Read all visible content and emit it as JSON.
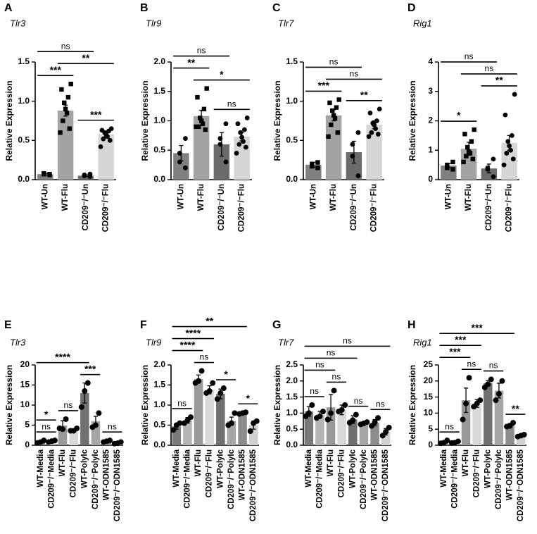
{
  "chart_data": [
    {
      "type": "bar",
      "panel": "A",
      "title": "Tlr3",
      "ylabel": "Relative Expression",
      "categories": [
        "WT-Un",
        "WT-Flu",
        "CD209⁻/⁻Un",
        "CD209⁻/⁻Flu"
      ],
      "values": [
        0.07,
        0.88,
        0.05,
        0.58
      ],
      "errors": [
        0.01,
        0.07,
        0.01,
        0.03
      ],
      "points": [
        [
          0.06,
          0.07,
          0.08,
          0.07
        ],
        [
          1.22,
          1.15,
          1.05,
          0.98,
          0.9,
          0.85,
          0.75,
          0.65,
          0.6
        ],
        [
          0.04,
          0.06,
          0.05,
          0.07
        ],
        [
          0.65,
          0.63,
          0.62,
          0.6,
          0.58,
          0.55,
          0.52,
          0.5,
          0.42
        ]
      ],
      "markers": [
        "square",
        "square",
        "circle",
        "circle"
      ],
      "colors": [
        "#808080",
        "#a3a3a3",
        "#6b6b6b",
        "#d6d6d6"
      ],
      "ylim": [
        0,
        1.5
      ],
      "yticks": [
        {
          "value": 0,
          "label": "0.0"
        },
        0.5,
        {
          "value": 1,
          "label": "1.0"
        },
        1.5
      ],
      "annotations": [
        {
          "text": "***",
          "from": 0,
          "to": 1
        },
        {
          "text": "***",
          "from": 2,
          "to": 3
        },
        {
          "text": "**",
          "from": 1,
          "to": 3
        },
        {
          "text": "ns",
          "from": 0,
          "to": 2
        }
      ]
    },
    {
      "type": "bar",
      "panel": "B",
      "title": "Tlr9",
      "ylabel": "Relative Expression",
      "categories": [
        "WT-Un",
        "WT-Flu",
        "CD209⁻/⁻Un",
        "CD209⁻/⁻Flu"
      ],
      "values": [
        0.45,
        1.08,
        0.6,
        0.73
      ],
      "errors": [
        0.13,
        0.1,
        0.2,
        0.07
      ],
      "points": [
        [
          0.7,
          0.45,
          0.3,
          0.2
        ],
        [
          1.55,
          1.4,
          1.2,
          1.05,
          1.0,
          0.95,
          0.9,
          0.85,
          0.9
        ],
        [
          0.95,
          0.7,
          0.6,
          0.3
        ],
        [
          1.05,
          0.95,
          0.85,
          0.8,
          0.72,
          0.65,
          0.6,
          0.55,
          0.45
        ]
      ],
      "markers": [
        "circle",
        "square",
        "circle",
        "circle"
      ],
      "colors": [
        "#808080",
        "#a3a3a3",
        "#6b6b6b",
        "#d6d6d6"
      ],
      "ylim": [
        0,
        2
      ],
      "yticks": [
        {
          "value": 0,
          "label": "0.0"
        },
        0.5,
        {
          "value": 1,
          "label": "1.0"
        },
        1.5,
        {
          "value": 2,
          "label": "2.0"
        }
      ],
      "annotations": [
        {
          "text": "ns",
          "from": 2,
          "to": 3
        },
        {
          "text": "*",
          "from": 1,
          "to": 3
        },
        {
          "text": "**",
          "from": 0,
          "to": 1
        },
        {
          "text": "ns",
          "from": 0,
          "to": 2
        }
      ]
    },
    {
      "type": "bar",
      "panel": "C",
      "title": "Tlr7",
      "ylabel": "Relative Expression",
      "categories": [
        "WT-Un",
        "WT-Flu",
        "CD209⁻/⁻Un",
        "CD209⁻/⁻Flu"
      ],
      "values": [
        0.19,
        0.82,
        0.35,
        0.7
      ],
      "errors": [
        0.03,
        0.07,
        0.14,
        0.05
      ],
      "points": [
        [
          0.22,
          0.2,
          0.17,
          0.15
        ],
        [
          1.02,
          0.98,
          0.92,
          0.88,
          0.82,
          0.78,
          0.7,
          0.6,
          0.55
        ],
        [
          0.6,
          0.45,
          0.3,
          0.05
        ],
        [
          0.9,
          0.85,
          0.75,
          0.72,
          0.7,
          0.65,
          0.6,
          0.58,
          0.55
        ]
      ],
      "markers": [
        "square",
        "square",
        "circle",
        "circle"
      ],
      "colors": [
        "#808080",
        "#a3a3a3",
        "#6b6b6b",
        "#d6d6d6"
      ],
      "ylim": [
        0,
        1.5
      ],
      "yticks": [
        {
          "value": 0,
          "label": "0.0"
        },
        0.5,
        {
          "value": 1,
          "label": "1.0"
        },
        1.5
      ],
      "annotations": [
        {
          "text": "**",
          "from": 2,
          "to": 3
        },
        {
          "text": "***",
          "from": 0,
          "to": 1
        },
        {
          "text": "ns",
          "from": 1,
          "to": 3
        },
        {
          "text": "ns",
          "from": 0,
          "to": 2
        }
      ]
    },
    {
      "type": "bar",
      "panel": "D",
      "title": "Rig1",
      "ylabel": "Relative Expression",
      "categories": [
        "WT-Un",
        "WT-Flu",
        "CD209⁻/⁻Un",
        "CD209⁻/⁻Flu"
      ],
      "values": [
        0.48,
        1.05,
        0.38,
        1.25
      ],
      "errors": [
        0.07,
        0.22,
        0.15,
        0.25
      ],
      "points": [
        [
          0.6,
          0.5,
          0.4,
          0.35
        ],
        [
          1.7,
          1.55,
          1.3,
          1.1,
          0.95,
          0.9,
          0.8,
          0.7,
          0.6
        ],
        [
          0.7,
          0.4,
          0.35,
          0.1
        ],
        [
          2.9,
          2.2,
          1.5,
          1.3,
          1.15,
          1.0,
          0.9,
          0.7,
          0.5
        ]
      ],
      "markers": [
        "square",
        "square",
        "circle",
        "circle"
      ],
      "colors": [
        "#808080",
        "#a3a3a3",
        "#6b6b6b",
        "#d6d6d6"
      ],
      "ylim": [
        0,
        4
      ],
      "yticks": [
        0,
        1,
        2,
        3,
        4
      ],
      "annotations": [
        {
          "text": "*",
          "from": 0,
          "to": 1
        },
        {
          "text": "**",
          "from": 2,
          "to": 3
        },
        {
          "text": "ns",
          "from": 1,
          "to": 3
        },
        {
          "text": "ns",
          "from": 0,
          "to": 2
        }
      ]
    },
    {
      "type": "bar",
      "panel": "E",
      "title": "Tlr3",
      "ylabel": "Relative Expression",
      "categories": [
        "WT-Media",
        "CD209⁻/⁻Media",
        "WT-Flu",
        "CD209⁻/⁻Flu",
        "WT-PolyIc",
        "CD209⁻/⁻PolyIc",
        "WT-ODN1585",
        "CD209⁻/⁻ODN1585"
      ],
      "values": [
        0.9,
        1.0,
        4.9,
        3.8,
        13.0,
        6.0,
        1.0,
        0.6
      ],
      "errors": [
        0.2,
        0.2,
        1.2,
        0.3,
        2.5,
        1.2,
        0.2,
        0.2
      ],
      "points": [
        [
          1.2,
          0.8,
          0.6
        ],
        [
          1.2,
          1.0,
          0.8
        ],
        [
          6.5,
          4.0,
          4.2
        ],
        [
          4.2,
          3.6,
          3.6
        ],
        [
          15.5,
          13.5,
          9.5
        ],
        [
          8,
          5,
          4.5
        ],
        [
          1.2,
          1,
          0.8
        ],
        [
          0.8,
          0.5,
          0.4
        ]
      ],
      "colors": [
        "#7a7a7a",
        "#b5b5b5",
        "#999999",
        "#d9d9d9",
        "#707070",
        "#a6a6a6",
        "#8c8c8c",
        "#d0d0d0"
      ],
      "ylim": [
        0,
        20
      ],
      "yticks": [
        0,
        5,
        10,
        15,
        20
      ],
      "annotations": [
        {
          "text": "ns",
          "from": 0,
          "to": 1
        },
        {
          "text": "*",
          "from": 0,
          "to": 1
        },
        {
          "text": "ns",
          "from": 2,
          "to": 3
        },
        {
          "text": "ns",
          "from": 6,
          "to": 7
        },
        {
          "text": "***",
          "from": 4,
          "to": 5
        },
        {
          "text": "****",
          "from": 0,
          "to": 4
        }
      ]
    },
    {
      "type": "bar",
      "panel": "F",
      "title": "Tlr9",
      "ylabel": "Relative Expression",
      "categories": [
        "WT-Media",
        "CD209⁻/⁻Media",
        "WT-Flu",
        "CD209⁻/⁻Flu",
        "WT-PolyIc",
        "CD209⁻/⁻PolyIc",
        "WT-ODN1585",
        "CD209⁻/⁻ODN1585"
      ],
      "values": [
        0.47,
        0.62,
        1.65,
        1.38,
        1.28,
        0.6,
        0.8,
        0.5
      ],
      "errors": [
        0.07,
        0.07,
        0.1,
        0.1,
        0.12,
        0.1,
        0.02,
        0.1
      ],
      "points": [
        [
          0.55,
          0.5,
          0.38
        ],
        [
          0.7,
          0.62,
          0.55
        ],
        [
          1.85,
          1.6,
          1.55
        ],
        [
          1.55,
          1.35,
          1.3
        ],
        [
          1.42,
          1.3,
          1.15
        ],
        [
          0.8,
          0.55,
          0.5
        ],
        [
          0.82,
          0.8,
          0.78
        ],
        [
          0.6,
          0.55,
          0.35
        ]
      ],
      "colors": [
        "#7a7a7a",
        "#b5b5b5",
        "#999999",
        "#d9d9d9",
        "#707070",
        "#a6a6a6",
        "#8c8c8c",
        "#d0d0d0"
      ],
      "ylim": [
        0,
        2
      ],
      "yticks": [
        {
          "value": 0,
          "label": "0.0"
        },
        0.5,
        {
          "value": 1,
          "label": "1.0"
        },
        1.5,
        {
          "value": 2,
          "label": "2.0"
        }
      ],
      "annotations": [
        {
          "text": "ns",
          "from": 0,
          "to": 1
        },
        {
          "text": "*",
          "from": 6,
          "to": 7
        },
        {
          "text": "*",
          "from": 4,
          "to": 5
        },
        {
          "text": "ns",
          "from": 2,
          "to": 3
        },
        {
          "text": "****",
          "from": 0,
          "to": 2
        },
        {
          "text": "****",
          "from": 0,
          "to": 3
        },
        {
          "text": "**",
          "from": 0,
          "to": 6
        }
      ]
    },
    {
      "type": "bar",
      "panel": "G",
      "title": "Tlr7",
      "ylabel": "Relative Expression",
      "categories": [
        "WT-Media",
        "CD209⁻/⁻Media",
        "WT-Flu",
        "CD209⁻/⁻Flu",
        "WT-PolyIc",
        "CD209⁻/⁻PolyIc",
        "WT-ODN1585",
        "CD209⁻/⁻ODN1585"
      ],
      "values": [
        1.05,
        0.95,
        1.18,
        1.1,
        0.8,
        0.68,
        0.7,
        0.42
      ],
      "errors": [
        0.15,
        0.1,
        0.4,
        0.15,
        0.12,
        0.05,
        0.1,
        0.1
      ],
      "points": [
        [
          1.25,
          1.0,
          0.9
        ],
        [
          1.05,
          0.9,
          0.85
        ],
        [
          1.7,
          1.0,
          0.8
        ],
        [
          1.25,
          1.1,
          1.05
        ],
        [
          0.95,
          0.78,
          0.7
        ],
        [
          0.72,
          0.68,
          0.65
        ],
        [
          0.85,
          0.72,
          0.6
        ],
        [
          0.55,
          0.42,
          0.3
        ]
      ],
      "colors": [
        "#7a7a7a",
        "#b5b5b5",
        "#999999",
        "#d9d9d9",
        "#707070",
        "#a6a6a6",
        "#8c8c8c",
        "#d0d0d0"
      ],
      "ylim": [
        0,
        2.5
      ],
      "yticks": [
        {
          "value": 0,
          "label": "0.0"
        },
        0.5,
        {
          "value": 1,
          "label": "1.0"
        },
        1.5,
        {
          "value": 2,
          "label": "2.0"
        },
        2.5
      ],
      "annotations": [
        {
          "text": "ns",
          "from": 0,
          "to": 1
        },
        {
          "text": "ns",
          "from": 4,
          "to": 5
        },
        {
          "text": "ns",
          "from": 6,
          "to": 7
        },
        {
          "text": "ns",
          "from": 2,
          "to": 3
        },
        {
          "text": "ns",
          "from": 0,
          "to": 2
        },
        {
          "text": "ns",
          "from": 0,
          "to": 4
        },
        {
          "text": "ns",
          "from": 0,
          "to": 7
        }
      ]
    },
    {
      "type": "bar",
      "panel": "H",
      "title": "Rig1",
      "ylabel": "Relative Expression",
      "categories": [
        "WT-Media",
        "CD209⁻/⁻Media",
        "WT-Flu",
        "CD209⁻/⁻Flu",
        "WT-PolyIc",
        "CD209⁻/⁻PolyIc",
        "WT-ODN1585",
        "CD209⁻/⁻ODN1585"
      ],
      "values": [
        1.0,
        0.9,
        14.0,
        13.0,
        19.3,
        17.0,
        6.2,
        3.0
      ],
      "errors": [
        0.3,
        0.3,
        3.8,
        1.2,
        0.8,
        2.3,
        0.6,
        0.3
      ],
      "points": [
        [
          1.5,
          0.8,
          0.6
        ],
        [
          1.2,
          0.8,
          0.7
        ],
        [
          21,
          13,
          8
        ],
        [
          14,
          13,
          12
        ],
        [
          20.5,
          19,
          18
        ],
        [
          20,
          16,
          14
        ],
        [
          7,
          6,
          5.8
        ],
        [
          3.3,
          3,
          2.7
        ]
      ],
      "colors": [
        "#7a7a7a",
        "#b5b5b5",
        "#999999",
        "#d9d9d9",
        "#707070",
        "#a6a6a6",
        "#8c8c8c",
        "#d0d0d0"
      ],
      "ylim": [
        0,
        25
      ],
      "yticks": [
        0,
        5,
        10,
        15,
        20,
        25
      ],
      "annotations": [
        {
          "text": "ns",
          "from": 0,
          "to": 1
        },
        {
          "text": "**",
          "from": 6,
          "to": 7
        },
        {
          "text": "ns",
          "from": 4,
          "to": 5
        },
        {
          "text": "ns",
          "from": 2,
          "to": 3
        },
        {
          "text": "***",
          "from": 0,
          "to": 2
        },
        {
          "text": "***",
          "from": 0,
          "to": 3
        },
        {
          "text": "***",
          "from": 0,
          "to": 6
        }
      ]
    }
  ]
}
